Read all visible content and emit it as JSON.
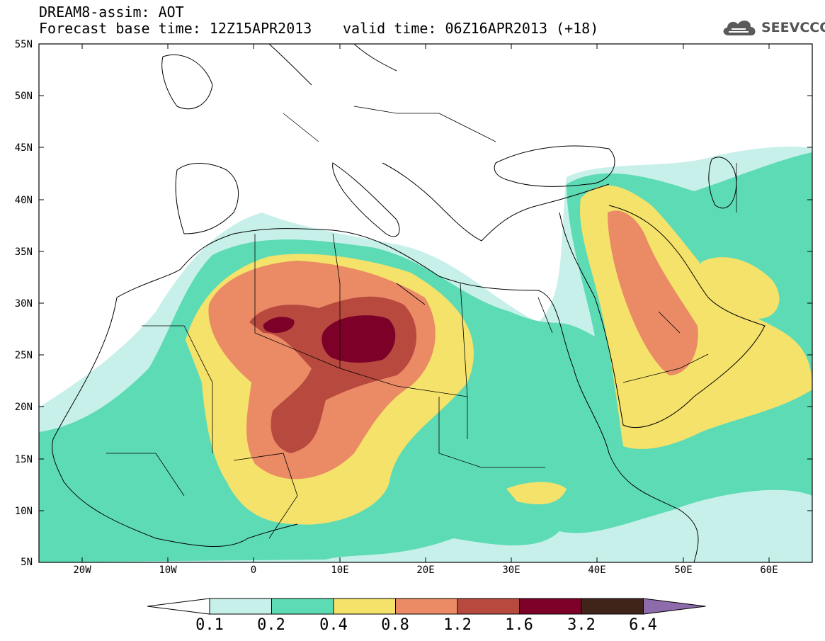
{
  "header": {
    "title_line1": "DREAM8-assim: AOT",
    "base_time": "Forecast base time: 12Z15APR2013",
    "valid_time": "valid time: 06Z16APR2013 (+18)",
    "logo_text": "SEEVCCC"
  },
  "axes": {
    "lat_labels": [
      "55N",
      "50N",
      "45N",
      "40N",
      "35N",
      "30N",
      "25N",
      "20N",
      "15N",
      "10N",
      "5N"
    ],
    "lon_labels": [
      "20W",
      "10W",
      "0",
      "10E",
      "20E",
      "30E",
      "40E",
      "50E",
      "60E"
    ]
  },
  "colorbar": {
    "labels": [
      "0.1",
      "0.2",
      "0.4",
      "0.8",
      "1.2",
      "1.6",
      "3.2",
      "6.4"
    ],
    "colors": [
      "#ffffff",
      "#c8f0ea",
      "#5ddbb5",
      "#f5e26a",
      "#ea8b66",
      "#b8493f",
      "#7d0028",
      "#40241a",
      "#8e6bab"
    ]
  },
  "map": {
    "lon_range": [
      -25,
      65
    ],
    "lat_range": [
      5,
      55
    ],
    "field": "AOT"
  }
}
